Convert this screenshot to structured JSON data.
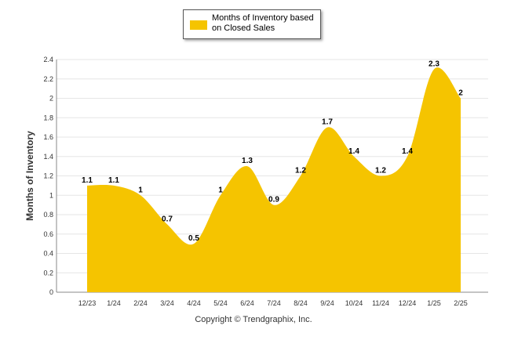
{
  "chart_data": {
    "type": "area",
    "categories": [
      "12/23",
      "1/24",
      "2/24",
      "3/24",
      "4/24",
      "5/24",
      "6/24",
      "7/24",
      "8/24",
      "9/24",
      "10/24",
      "11/24",
      "12/24",
      "1/25",
      "2/25"
    ],
    "series": [
      {
        "name": "Months of Inventory based on Closed Sales",
        "values": [
          1.1,
          1.1,
          1.0,
          0.7,
          0.5,
          1.0,
          1.3,
          0.9,
          1.2,
          1.7,
          1.4,
          1.2,
          1.4,
          2.3,
          2.0
        ],
        "labels": [
          "1.1",
          "1.1",
          "1",
          "0.7",
          "0.5",
          "1",
          "1.3",
          "0.9",
          "1.2",
          "1.7",
          "1.4",
          "1.2",
          "1.4",
          "2.3",
          "2"
        ]
      }
    ],
    "ylabel": "Months of Inventory",
    "xlabel": "",
    "ylim": [
      0,
      2.4
    ],
    "yticks": [
      "0",
      "0.2",
      "0.4",
      "0.6",
      "0.8",
      "1",
      "1.2",
      "1.4",
      "1.6",
      "1.8",
      "2",
      "2.2",
      "2.4"
    ],
    "grid": true,
    "legend_position": "top-center",
    "colors": {
      "series": "#F5C400",
      "grid": "#E6E6E6",
      "axis": "#888888"
    }
  },
  "legend": {
    "label_line1": "Months of Inventory based",
    "label_line2": "on Closed Sales"
  },
  "footer": {
    "copyright": "Copyright © Trendgraphix, Inc."
  }
}
